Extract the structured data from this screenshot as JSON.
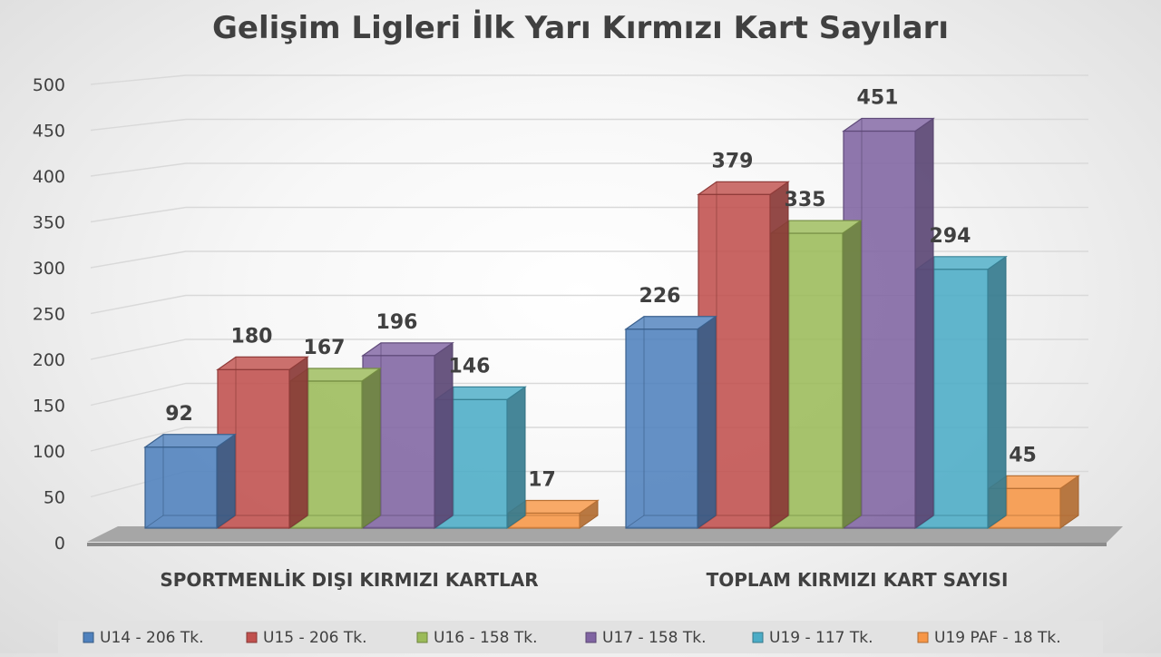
{
  "chart_data": {
    "type": "bar",
    "title": "Gelişim Ligleri İlk Yarı Kırmızı Kart Sayıları",
    "categories": [
      "SPORTMENLİK DIŞI KIRMIZI KARTLAR",
      "TOPLAM KIRMIZI KART SAYISI"
    ],
    "series": [
      {
        "name": "U14 - 206 Tk.",
        "values": [
          92,
          226
        ],
        "color": "#4f81bd"
      },
      {
        "name": "U15 - 206 Tk.",
        "values": [
          180,
          379
        ],
        "color": "#c0504d"
      },
      {
        "name": "U16 - 158 Tk.",
        "values": [
          167,
          335
        ],
        "color": "#9bbb59"
      },
      {
        "name": "U17 - 158 Tk.",
        "values": [
          196,
          451
        ],
        "color": "#8064a2"
      },
      {
        "name": "U19 - 117 Tk.",
        "values": [
          146,
          294
        ],
        "color": "#4bacc6"
      },
      {
        "name": "U19 PAF - 18 Tk.",
        "values": [
          17,
          45
        ],
        "color": "#f79646"
      }
    ],
    "ylim": [
      0,
      500
    ],
    "yticks": [
      "0",
      "50",
      "100",
      "150",
      "200",
      "250",
      "300",
      "350",
      "400",
      "450",
      "500"
    ],
    "grid": true,
    "legend_position": "bottom",
    "style": "3d-clustered-column"
  }
}
